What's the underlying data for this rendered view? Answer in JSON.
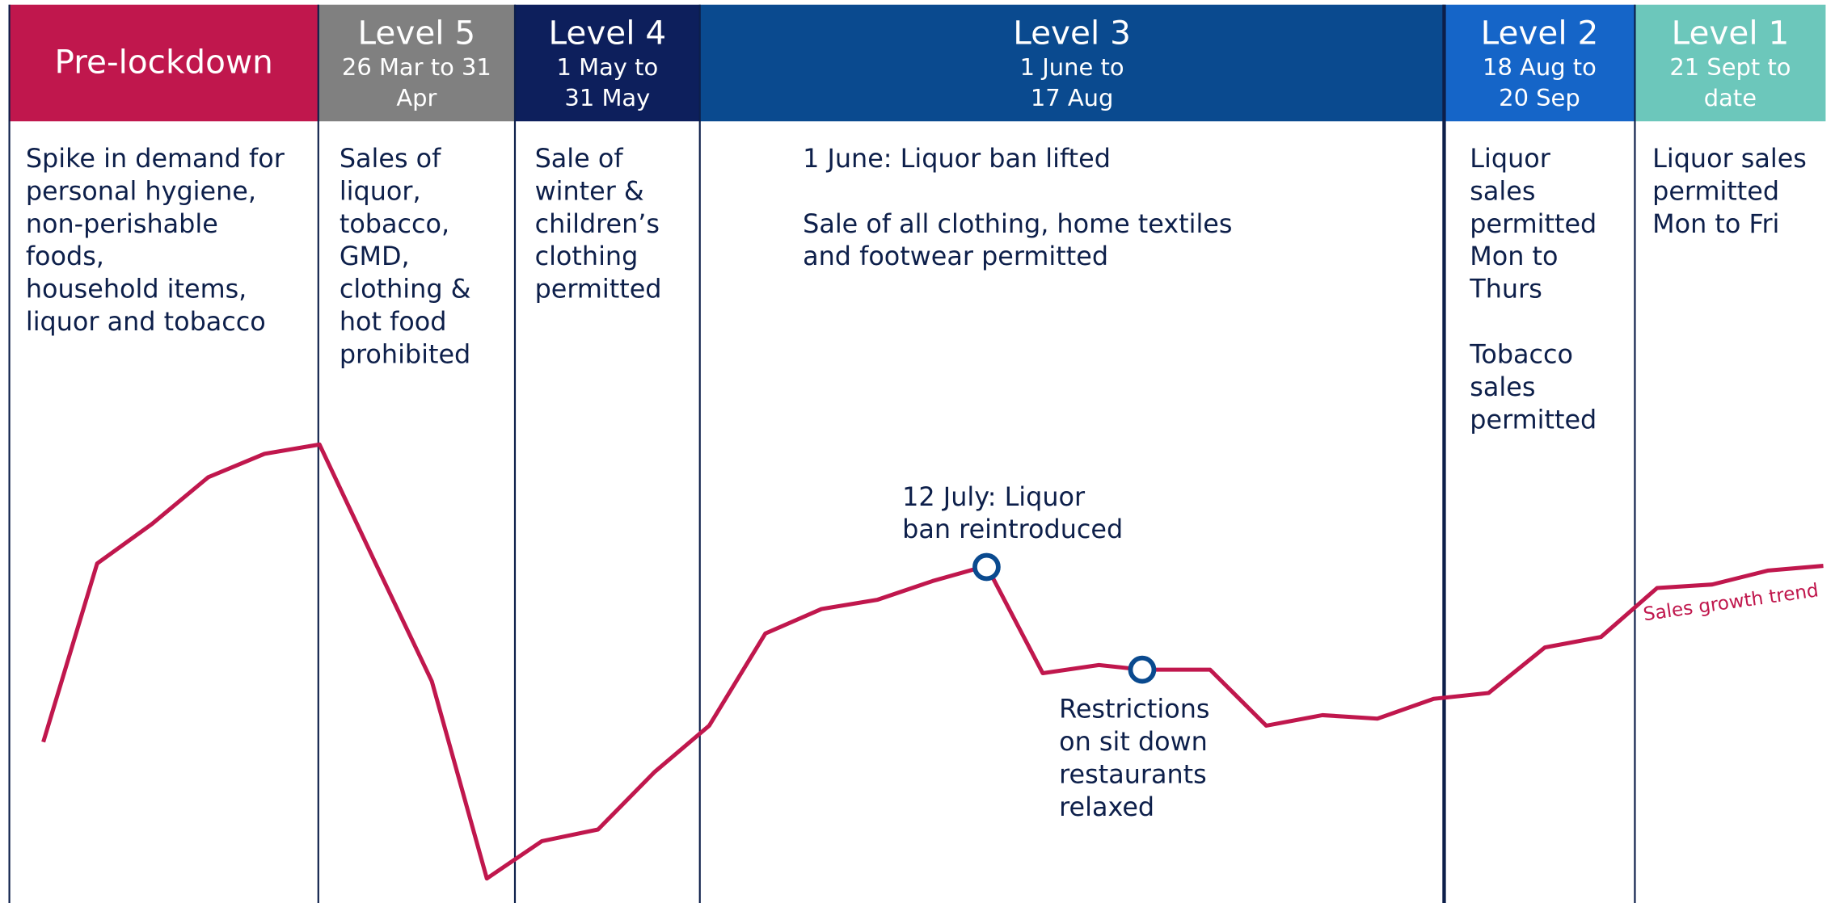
{
  "columns": [
    {
      "title": "Pre-lockdown",
      "color": "#c0174d",
      "text": [
        [
          "Spike in demand for",
          "personal hygiene,",
          "non-perishable",
          "foods,",
          "household items,",
          "liquor and tobacco"
        ]
      ]
    },
    {
      "title": "Level 5",
      "dates": [
        "26 Mar to 31",
        "Apr"
      ],
      "color": "#808080",
      "text": [
        [
          "Sales of",
          "liquor,",
          "tobacco,",
          "GMD,",
          "clothing &",
          "hot food",
          "prohibited"
        ]
      ]
    },
    {
      "title": "Level 4",
      "dates": [
        "1 May to",
        "31 May"
      ],
      "color": "#0d1f5c",
      "text": [
        [
          "Sale of",
          "winter &",
          "children’s",
          "clothing",
          "permitted"
        ]
      ]
    },
    {
      "title": "Level 3",
      "dates": [
        "1 June to",
        "17 Aug"
      ],
      "color": "#0a4a8f",
      "text": [
        [
          "1 June: Liquor ban lifted"
        ],
        [
          "Sale of all clothing, home textiles",
          "and footwear permitted"
        ]
      ]
    },
    {
      "title": "Level 2",
      "dates": [
        "18 Aug to",
        "20 Sep"
      ],
      "color": "#1565c8",
      "text": [
        [
          "Liquor",
          "sales",
          "permitted",
          "Mon to",
          "Thurs"
        ],
        [
          "Tobacco",
          "sales",
          "permitted"
        ]
      ]
    },
    {
      "title": "Level 1",
      "dates": [
        "21 Sept to",
        "date"
      ],
      "color": "#6cc7bb",
      "text": [
        [
          "Liquor sales",
          "permitted",
          "Mon to Fri"
        ]
      ]
    }
  ],
  "annotations": [
    {
      "lines": [
        "12 July: Liquor",
        "ban reintroduced"
      ]
    },
    {
      "lines": [
        "Restrictions",
        "on sit down",
        "restaurants",
        "relaxed"
      ]
    }
  ],
  "trend_label": "Sales growth trend"
}
